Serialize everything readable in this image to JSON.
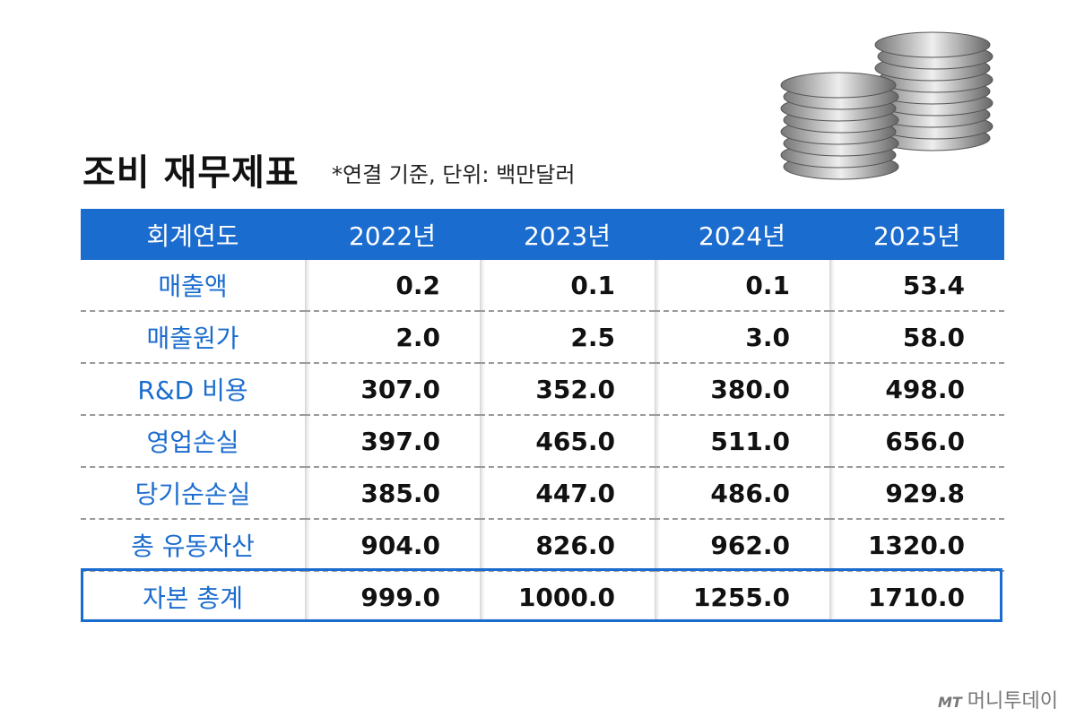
{
  "header": {
    "title": "조비 재무제표",
    "note": "*연결 기준, 단위: 백만달러"
  },
  "table": {
    "columns": [
      "회계연도",
      "2022년",
      "2023년",
      "2024년",
      "2025년"
    ],
    "rows": [
      [
        "매출액",
        "0.2",
        "0.1",
        "0.1",
        "53.4"
      ],
      [
        "매출원가",
        "2.0",
        "2.5",
        "3.0",
        "58.0"
      ],
      [
        "R&D 비용",
        "307.0",
        "352.0",
        "380.0",
        "498.0"
      ],
      [
        "영업손실",
        "397.0",
        "465.0",
        "511.0",
        "656.0"
      ],
      [
        "당기순손실",
        "385.0",
        "447.0",
        "486.0",
        "929.8"
      ],
      [
        "총 유동자산",
        "904.0",
        "826.0",
        "962.0",
        "1320.0"
      ],
      [
        "자본 총계",
        "999.0",
        "1000.0",
        "1255.0",
        "1710.0"
      ]
    ]
  },
  "footer": {
    "logo_mark": "MT",
    "logo_text": "머니투데이"
  }
}
